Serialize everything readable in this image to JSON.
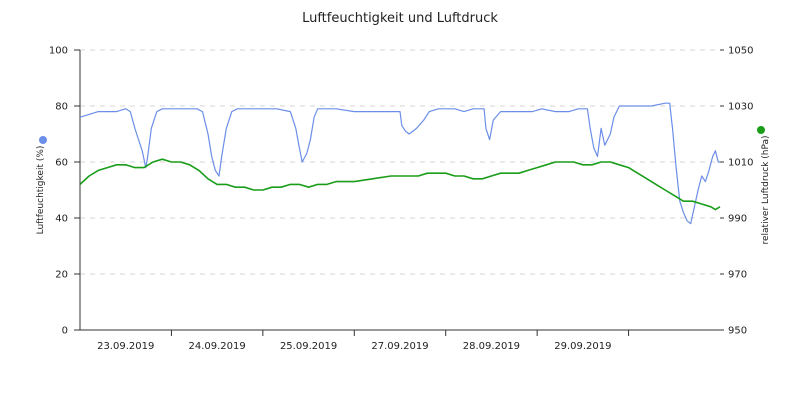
{
  "chart_data": {
    "type": "line",
    "title": "Luftfeuchtigkeit und Luftdruck",
    "y_left": {
      "label": "Luftfeuchtigkeit (%)",
      "ticks": [
        0,
        20,
        40,
        60,
        80,
        100
      ],
      "range": [
        0,
        100
      ],
      "color": "#6b8ee8"
    },
    "y_right": {
      "label": "relativer Luftdruck (hPa)",
      "ticks": [
        950,
        970,
        990,
        1010,
        1030,
        1050
      ],
      "range": [
        950,
        1050
      ],
      "color": "#1a9e1a"
    },
    "x_axis": {
      "range": [
        0,
        7.0
      ],
      "tick_positions": [
        1.0,
        2.0,
        3.0,
        4.0,
        5.0,
        6.0
      ],
      "labels": [
        {
          "pos": 0.5,
          "text": "23.09.2019"
        },
        {
          "pos": 1.5,
          "text": "24.09.2019"
        },
        {
          "pos": 2.5,
          "text": "25.09.2019"
        },
        {
          "pos": 3.5,
          "text": "27.09.2019"
        },
        {
          "pos": 4.5,
          "text": "28.09.2019"
        },
        {
          "pos": 5.5,
          "text": "29.09.2019"
        }
      ]
    },
    "grid": true,
    "series": [
      {
        "axis": "left",
        "color": "#6b8ee8",
        "points": [
          [
            0.0,
            76
          ],
          [
            0.1,
            77
          ],
          [
            0.2,
            78
          ],
          [
            0.3,
            78
          ],
          [
            0.4,
            78
          ],
          [
            0.5,
            79
          ],
          [
            0.55,
            78
          ],
          [
            0.6,
            72
          ],
          [
            0.64,
            68
          ],
          [
            0.68,
            64
          ],
          [
            0.72,
            58
          ],
          [
            0.74,
            62
          ],
          [
            0.78,
            72
          ],
          [
            0.84,
            78
          ],
          [
            0.9,
            79
          ],
          [
            1.0,
            79
          ],
          [
            1.1,
            79
          ],
          [
            1.2,
            79
          ],
          [
            1.28,
            79
          ],
          [
            1.34,
            78
          ],
          [
            1.4,
            70
          ],
          [
            1.44,
            62
          ],
          [
            1.48,
            57
          ],
          [
            1.52,
            55
          ],
          [
            1.55,
            62
          ],
          [
            1.6,
            72
          ],
          [
            1.66,
            78
          ],
          [
            1.72,
            79
          ],
          [
            1.85,
            79
          ],
          [
            2.0,
            79
          ],
          [
            2.15,
            79
          ],
          [
            2.3,
            78
          ],
          [
            2.36,
            72
          ],
          [
            2.4,
            65
          ],
          [
            2.43,
            60
          ],
          [
            2.48,
            63
          ],
          [
            2.52,
            68
          ],
          [
            2.56,
            76
          ],
          [
            2.6,
            79
          ],
          [
            2.8,
            79
          ],
          [
            3.0,
            78
          ],
          [
            3.15,
            78
          ],
          [
            3.3,
            78
          ],
          [
            3.5,
            78
          ],
          [
            3.52,
            73
          ],
          [
            3.56,
            71
          ],
          [
            3.6,
            70
          ],
          [
            3.68,
            72
          ],
          [
            3.76,
            75
          ],
          [
            3.82,
            78
          ],
          [
            3.92,
            79
          ],
          [
            4.0,
            79
          ],
          [
            4.1,
            79
          ],
          [
            4.2,
            78
          ],
          [
            4.3,
            79
          ],
          [
            4.42,
            79
          ],
          [
            4.44,
            72
          ],
          [
            4.48,
            68
          ],
          [
            4.52,
            75
          ],
          [
            4.6,
            78
          ],
          [
            4.8,
            78
          ],
          [
            4.95,
            78
          ],
          [
            5.05,
            79
          ],
          [
            5.2,
            78
          ],
          [
            5.35,
            78
          ],
          [
            5.45,
            79
          ],
          [
            5.55,
            79
          ],
          [
            5.58,
            72
          ],
          [
            5.62,
            65
          ],
          [
            5.66,
            62
          ],
          [
            5.7,
            72
          ],
          [
            5.74,
            66
          ],
          [
            5.8,
            70
          ],
          [
            5.84,
            76
          ],
          [
            5.9,
            80
          ],
          [
            6.1,
            80
          ],
          [
            6.25,
            80
          ],
          [
            6.4,
            81
          ],
          [
            6.45,
            81
          ],
          [
            6.48,
            72
          ],
          [
            6.52,
            58
          ],
          [
            6.56,
            46
          ],
          [
            6.6,
            42
          ],
          [
            6.64,
            39
          ],
          [
            6.68,
            38
          ],
          [
            6.72,
            44
          ],
          [
            6.76,
            50
          ],
          [
            6.8,
            55
          ],
          [
            6.84,
            53
          ],
          [
            6.88,
            57
          ],
          [
            6.92,
            62
          ],
          [
            6.95,
            64
          ],
          [
            6.98,
            60
          ],
          [
            7.0,
            60
          ]
        ]
      },
      {
        "axis": "right",
        "color": "#1a9e1a",
        "points": [
          [
            0.0,
            1002
          ],
          [
            0.1,
            1005
          ],
          [
            0.2,
            1007
          ],
          [
            0.3,
            1008
          ],
          [
            0.4,
            1009
          ],
          [
            0.5,
            1009
          ],
          [
            0.6,
            1008
          ],
          [
            0.7,
            1008
          ],
          [
            0.8,
            1010
          ],
          [
            0.9,
            1011
          ],
          [
            1.0,
            1010
          ],
          [
            1.1,
            1010
          ],
          [
            1.2,
            1009
          ],
          [
            1.3,
            1007
          ],
          [
            1.4,
            1004
          ],
          [
            1.5,
            1002
          ],
          [
            1.6,
            1002
          ],
          [
            1.7,
            1001
          ],
          [
            1.8,
            1001
          ],
          [
            1.9,
            1000
          ],
          [
            2.0,
            1000
          ],
          [
            2.1,
            1001
          ],
          [
            2.2,
            1001
          ],
          [
            2.3,
            1002
          ],
          [
            2.4,
            1002
          ],
          [
            2.5,
            1001
          ],
          [
            2.6,
            1002
          ],
          [
            2.7,
            1002
          ],
          [
            2.8,
            1003
          ],
          [
            3.0,
            1003
          ],
          [
            3.2,
            1004
          ],
          [
            3.4,
            1005
          ],
          [
            3.5,
            1005
          ],
          [
            3.6,
            1005
          ],
          [
            3.7,
            1005
          ],
          [
            3.8,
            1006
          ],
          [
            3.9,
            1006
          ],
          [
            4.0,
            1006
          ],
          [
            4.1,
            1005
          ],
          [
            4.2,
            1005
          ],
          [
            4.3,
            1004
          ],
          [
            4.4,
            1004
          ],
          [
            4.5,
            1005
          ],
          [
            4.6,
            1006
          ],
          [
            4.7,
            1006
          ],
          [
            4.8,
            1006
          ],
          [
            4.9,
            1007
          ],
          [
            5.0,
            1008
          ],
          [
            5.1,
            1009
          ],
          [
            5.2,
            1010
          ],
          [
            5.3,
            1010
          ],
          [
            5.4,
            1010
          ],
          [
            5.5,
            1009
          ],
          [
            5.6,
            1009
          ],
          [
            5.7,
            1010
          ],
          [
            5.8,
            1010
          ],
          [
            5.9,
            1009
          ],
          [
            6.0,
            1008
          ],
          [
            6.1,
            1006
          ],
          [
            6.2,
            1004
          ],
          [
            6.3,
            1002
          ],
          [
            6.4,
            1000
          ],
          [
            6.5,
            998
          ],
          [
            6.6,
            996
          ],
          [
            6.7,
            996
          ],
          [
            6.8,
            995
          ],
          [
            6.9,
            994
          ],
          [
            6.95,
            993
          ],
          [
            7.0,
            994
          ]
        ]
      }
    ],
    "legend_markers": [
      {
        "axis": "left",
        "color": "#6b8ee8"
      },
      {
        "axis": "right",
        "color": "#1a9e1a"
      }
    ]
  }
}
